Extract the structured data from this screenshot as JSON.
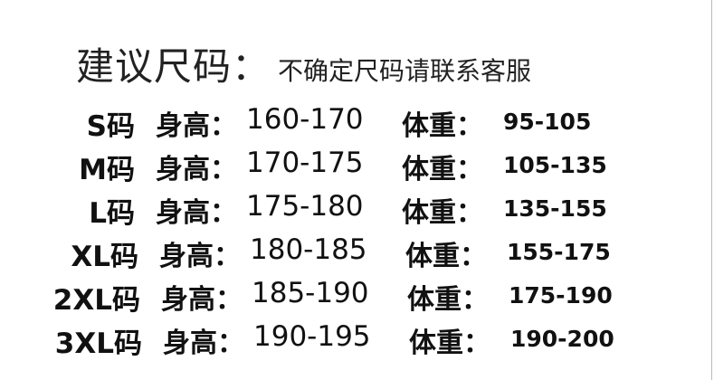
{
  "title": {
    "main": "建议尺码：",
    "sub": "不确定尺码请联系客服"
  },
  "height_label": "身高：",
  "weight_label": "体重：",
  "rows": [
    {
      "size": "S码",
      "height": "160-170",
      "weight": "95-105"
    },
    {
      "size": "M码",
      "height": "170-175",
      "weight": "105-135"
    },
    {
      "size": "L码",
      "height": "175-180",
      "weight": "135-155"
    },
    {
      "size": "XL码",
      "height": "180-185",
      "weight": "155-175"
    },
    {
      "size": "2XL码",
      "height": "185-190",
      "weight": "175-190"
    },
    {
      "size": "3XL码",
      "height": "190-195",
      "weight": "190-200"
    }
  ]
}
